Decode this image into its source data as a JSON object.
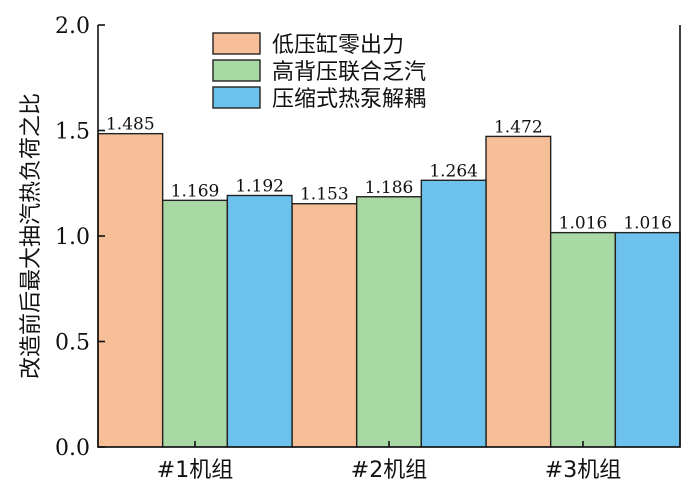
{
  "chart_data": {
    "type": "bar",
    "title": "",
    "xlabel": "",
    "ylabel": "改造前后最大抽汽热负荷之比",
    "ylim": [
      0,
      2.0
    ],
    "yticks": [
      0.0,
      0.5,
      1.0,
      1.5,
      2.0
    ],
    "ytick_labels": [
      "0.0",
      "0.5",
      "1.0",
      "1.5",
      "2.0"
    ],
    "categories": [
      "#1机组",
      "#2机组",
      "#3机组"
    ],
    "series": [
      {
        "name": "低压缸零出力",
        "color": "#f7bf98",
        "values": [
          1.485,
          1.153,
          1.472
        ],
        "labels": [
          "1.485",
          "1.153",
          "1.472"
        ]
      },
      {
        "name": "高背压联合乏汽",
        "color": "#a8d8a4",
        "values": [
          1.169,
          1.186,
          1.016
        ],
        "labels": [
          "1.169",
          "1.186",
          "1.016"
        ]
      },
      {
        "name": "压缩式热泵解耦",
        "color": "#6cc2ec",
        "values": [
          1.192,
          1.264,
          1.016
        ],
        "labels": [
          "1.192",
          "1.264",
          "1.016"
        ]
      }
    ],
    "legend_position": "top-center",
    "grid": false
  }
}
